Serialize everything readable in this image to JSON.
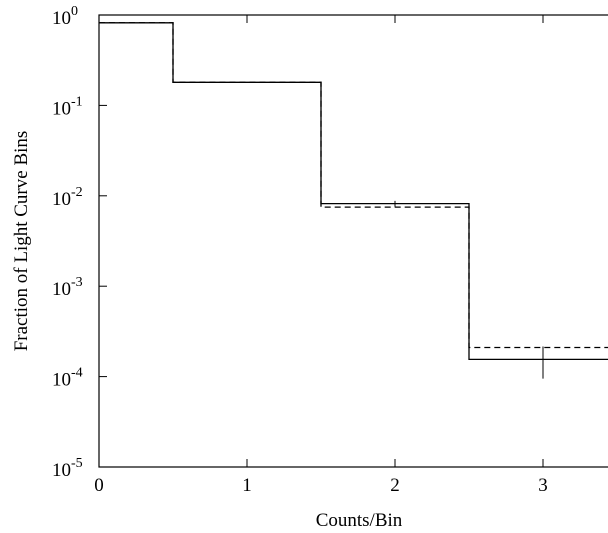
{
  "chart_data": {
    "type": "line",
    "title": "",
    "xlabel": "Counts/Bin",
    "ylabel": "Fraction of Light Curve Bins",
    "xlim": [
      0,
      3.5
    ],
    "ylim": [
      1e-05,
      1
    ],
    "yscale": "log",
    "grid": false,
    "x_ticks": [
      {
        "value": 0,
        "label": "0"
      },
      {
        "value": 1,
        "label": "1"
      },
      {
        "value": 2,
        "label": "2"
      },
      {
        "value": 3,
        "label": "3"
      }
    ],
    "y_ticks": [
      {
        "value": 1,
        "base": "10",
        "exp": "0"
      },
      {
        "value": 0.1,
        "base": "10",
        "exp": "-1"
      },
      {
        "value": 0.01,
        "base": "10",
        "exp": "-2"
      },
      {
        "value": 0.001,
        "base": "10",
        "exp": "-3"
      },
      {
        "value": 0.0001,
        "base": "10",
        "exp": "-4"
      },
      {
        "value": 1e-05,
        "base": "10",
        "exp": "-5"
      }
    ],
    "series": [
      {
        "style": "solid",
        "color": "#000000",
        "categories": [
          0,
          1,
          2,
          3
        ],
        "values": [
          0.82,
          0.18,
          0.0082,
          0.000155
        ],
        "errors": [
          {
            "x": 2,
            "low": 0.0076,
            "high": 0.0088
          },
          {
            "x": 3,
            "low": 9.5e-05,
            "high": 0.000215
          }
        ]
      },
      {
        "style": "dashed",
        "color": "#000000",
        "categories": [
          0,
          1,
          2,
          3
        ],
        "values": [
          0.82,
          0.18,
          0.0075,
          0.00021
        ]
      }
    ]
  }
}
